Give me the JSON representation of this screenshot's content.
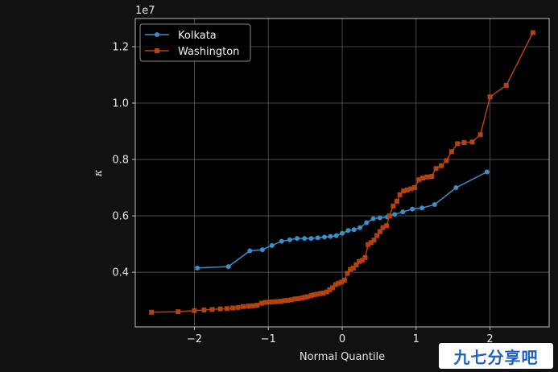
{
  "chart_data": {
    "type": "line",
    "xlabel": "Normal Quantile",
    "ylabel": "κ",
    "y_offset_label": "1e7",
    "xlim": [
      -2.8,
      2.8
    ],
    "ylim": [
      2060000,
      13000000
    ],
    "x_ticks": [
      -2,
      -1,
      0,
      1,
      2
    ],
    "x_tick_labels": [
      "−2",
      "−1",
      "0",
      "1",
      "2"
    ],
    "y_ticks": [
      4000000,
      6000000,
      8000000,
      10000000,
      12000000
    ],
    "y_tick_labels": [
      "0.4",
      "0.6",
      "0.8",
      "1.0",
      "1.2"
    ],
    "grid": true,
    "legend_position": "top-left",
    "series": [
      {
        "name": "Kolkata",
        "color": "#3a8fc9",
        "marker": "circle",
        "x": [
          -1.96,
          -1.54,
          -1.25,
          -1.08,
          -0.95,
          -0.82,
          -0.71,
          -0.61,
          -0.51,
          -0.42,
          -0.33,
          -0.24,
          -0.16,
          -0.08,
          0.0,
          0.08,
          0.16,
          0.24,
          0.33,
          0.42,
          0.51,
          0.61,
          0.71,
          0.82,
          0.95,
          1.08,
          1.25,
          1.54,
          1.96
        ],
        "y": [
          4150000,
          4200000,
          4760000,
          4800000,
          4950000,
          5100000,
          5150000,
          5200000,
          5200000,
          5200000,
          5220000,
          5250000,
          5270000,
          5300000,
          5380000,
          5480000,
          5510000,
          5580000,
          5760000,
          5900000,
          5930000,
          5960000,
          6050000,
          6140000,
          6240000,
          6280000,
          6400000,
          7000000,
          7560000
        ]
      },
      {
        "name": "Washington",
        "color": "#b5430f",
        "marker": "square",
        "x": [
          -2.58,
          -2.22,
          -2.0,
          -1.87,
          -1.76,
          -1.65,
          -1.56,
          -1.48,
          -1.41,
          -1.34,
          -1.27,
          -1.21,
          -1.15,
          -1.09,
          -1.04,
          -0.98,
          -0.93,
          -0.88,
          -0.83,
          -0.78,
          -0.74,
          -0.69,
          -0.64,
          -0.6,
          -0.55,
          -0.51,
          -0.47,
          -0.42,
          -0.38,
          -0.34,
          -0.3,
          -0.26,
          -0.21,
          -0.17,
          -0.13,
          -0.09,
          -0.05,
          -0.01,
          0.03,
          0.07,
          0.11,
          0.15,
          0.19,
          0.23,
          0.27,
          0.31,
          0.35,
          0.39,
          0.43,
          0.47,
          0.51,
          0.55,
          0.6,
          0.64,
          0.69,
          0.74,
          0.78,
          0.83,
          0.88,
          0.93,
          0.98,
          1.04,
          1.09,
          1.15,
          1.21,
          1.27,
          1.34,
          1.41,
          1.48,
          1.56,
          1.65,
          1.76,
          1.87,
          2.0,
          2.22,
          2.58
        ],
        "y": [
          2580000,
          2600000,
          2640000,
          2660000,
          2680000,
          2700000,
          2710000,
          2730000,
          2750000,
          2780000,
          2800000,
          2810000,
          2830000,
          2900000,
          2930000,
          2940000,
          2950000,
          2960000,
          2970000,
          2990000,
          3000000,
          3020000,
          3050000,
          3060000,
          3080000,
          3110000,
          3130000,
          3170000,
          3200000,
          3220000,
          3240000,
          3260000,
          3300000,
          3380000,
          3450000,
          3560000,
          3610000,
          3650000,
          3720000,
          3960000,
          4100000,
          4150000,
          4260000,
          4380000,
          4420000,
          4520000,
          4980000,
          5050000,
          5140000,
          5300000,
          5440000,
          5580000,
          5650000,
          6000000,
          6350000,
          6520000,
          6750000,
          6880000,
          6920000,
          6960000,
          7000000,
          7280000,
          7340000,
          7380000,
          7400000,
          7680000,
          7780000,
          7960000,
          8280000,
          8560000,
          8600000,
          8620000,
          8880000,
          10220000,
          10630000,
          12500000
        ]
      }
    ]
  },
  "watermark": {
    "text": "九七分享吧"
  }
}
